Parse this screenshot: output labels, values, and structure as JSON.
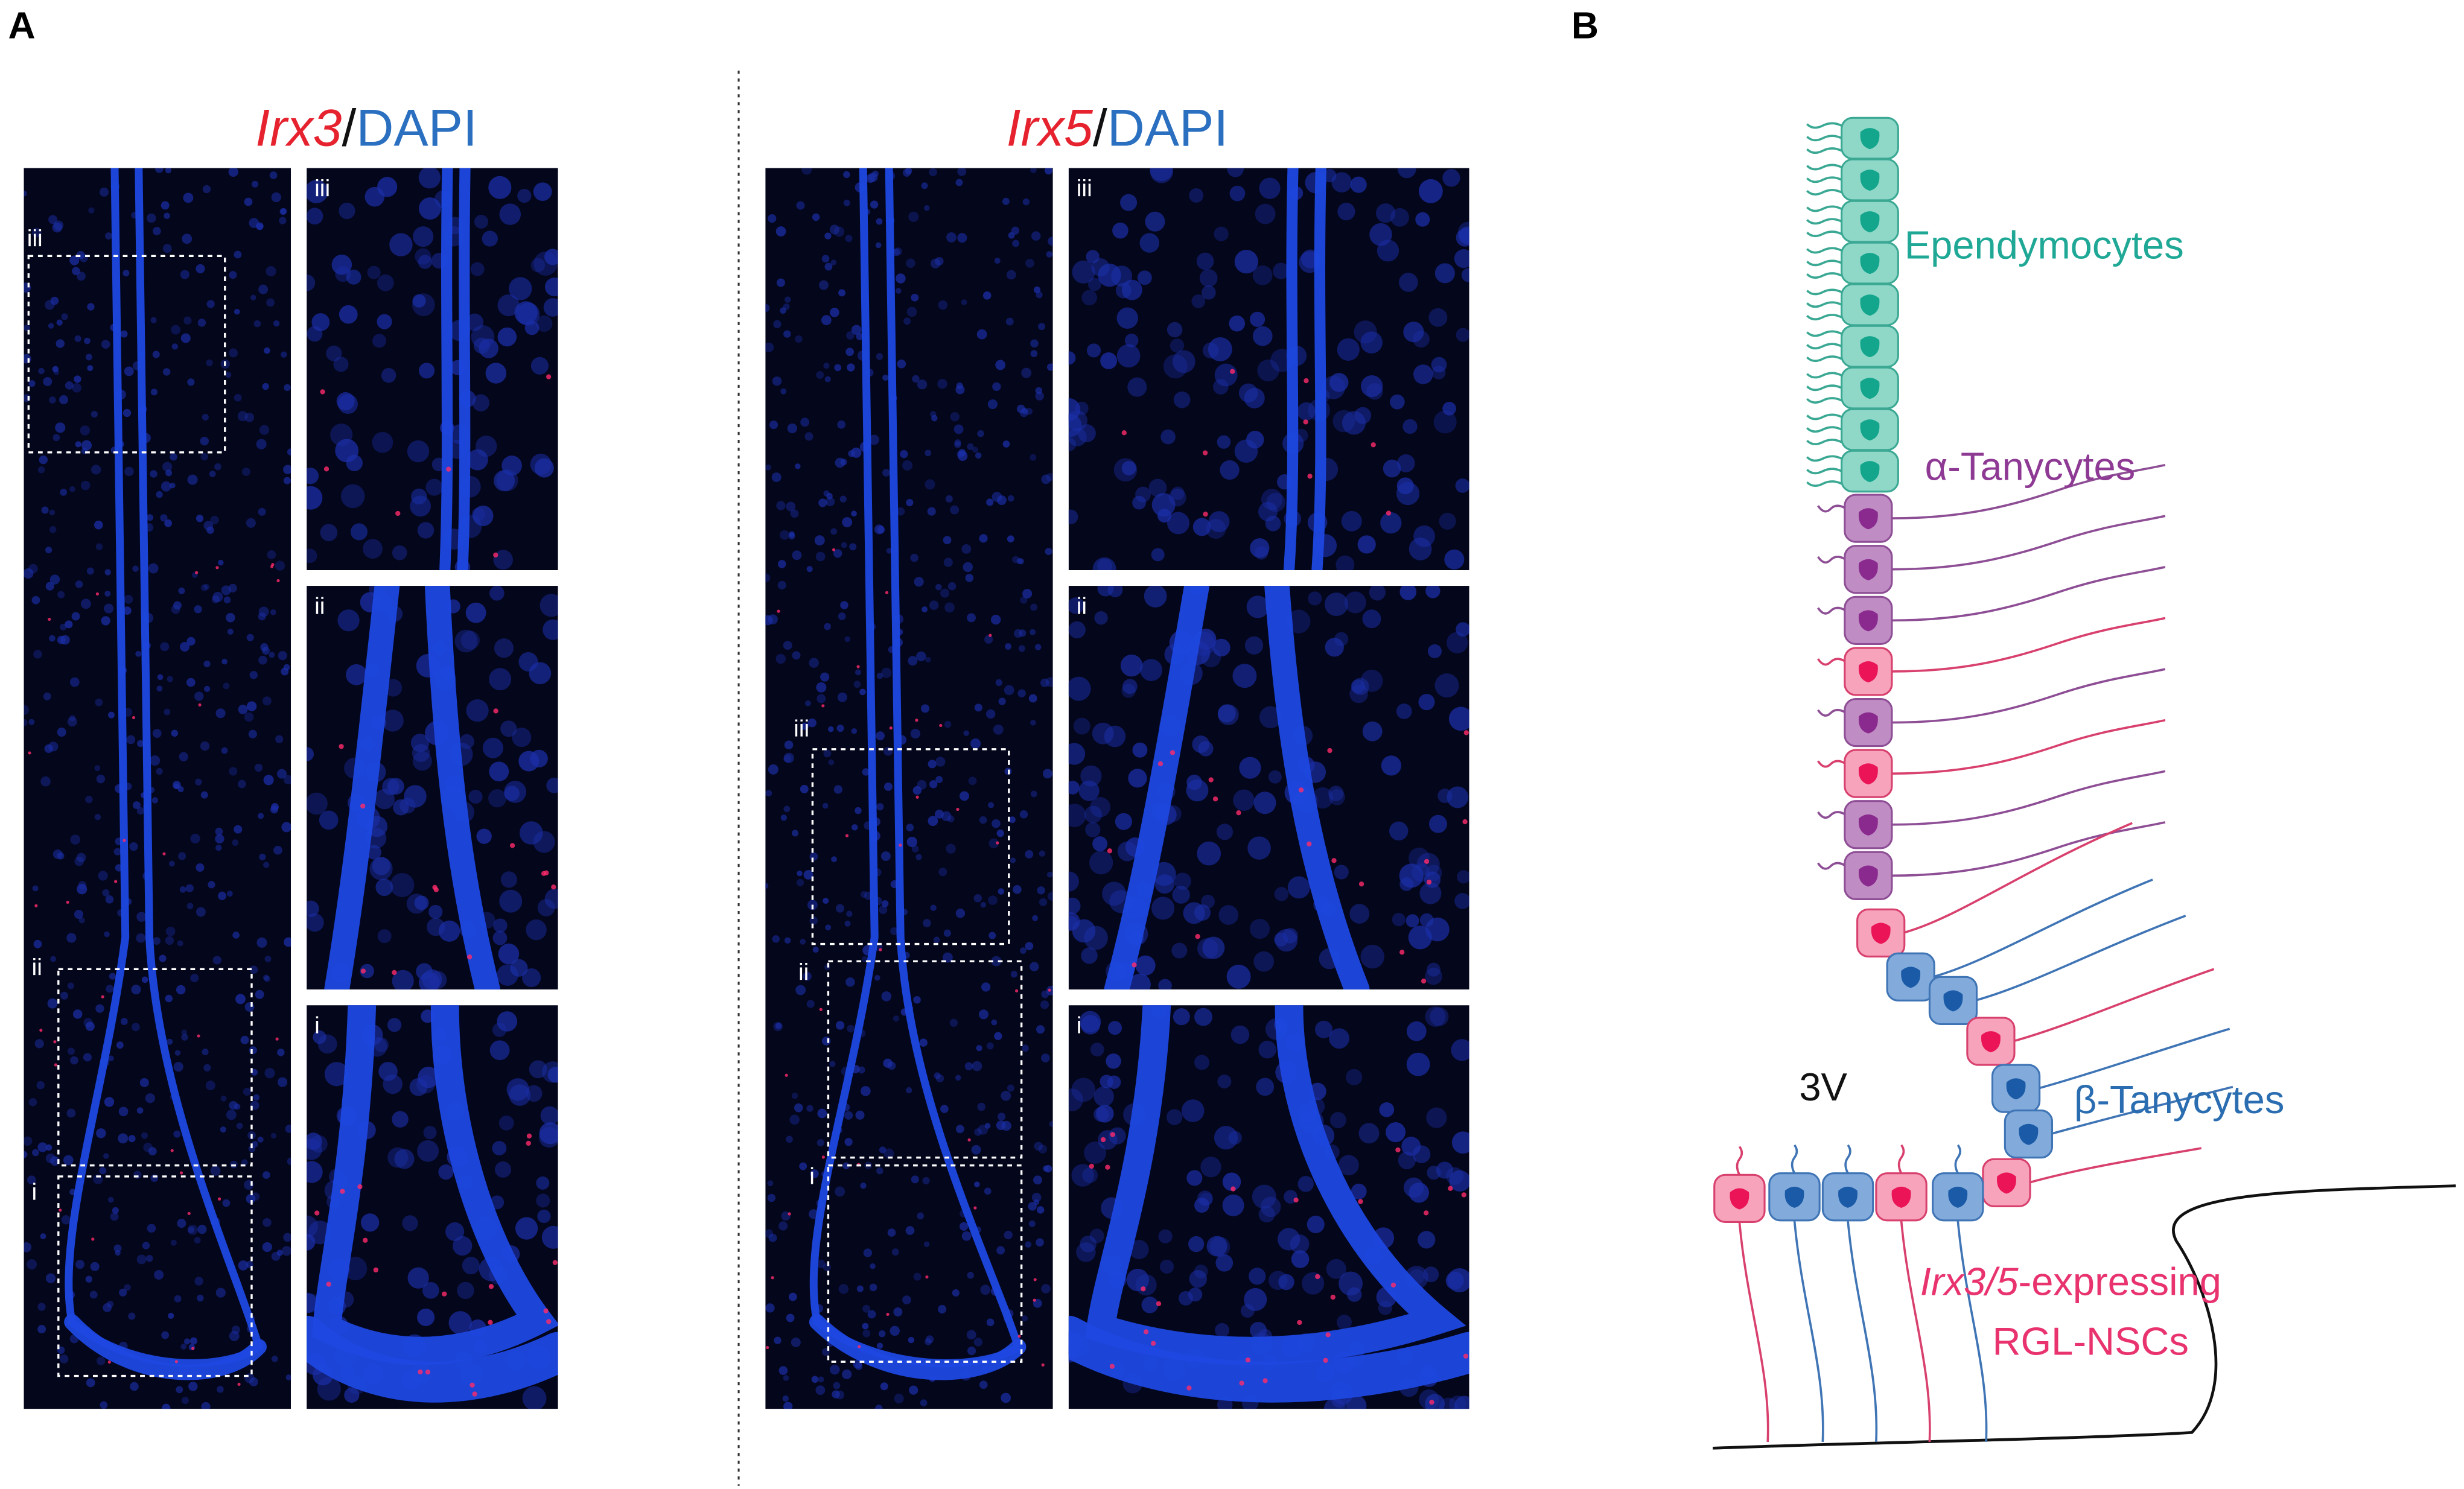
{
  "panel_a": {
    "label": "A",
    "left": {
      "title_gene": "Irx3",
      "title_slash": "/",
      "title_stain": "DAPI",
      "overview_labels": [
        "iii",
        "ii",
        "i"
      ],
      "inset_labels": [
        "iii",
        "ii",
        "i"
      ]
    },
    "right": {
      "title_gene": "Irx5",
      "title_slash": "/",
      "title_stain": "DAPI",
      "overview_labels": [
        "iii",
        "ii",
        "i"
      ],
      "inset_labels": [
        "iii",
        "ii",
        "i"
      ]
    }
  },
  "panel_b": {
    "label": "B",
    "ependymocytes": "Ependymocytes",
    "alpha_tanycytes": "α-Tanycytes",
    "beta_tanycytes": "β-Tanycytes",
    "ventricle": "3V",
    "rgl_gene": "Irx3/5",
    "rgl_suffix": "-expressing",
    "rgl_line2": "RGL-NSCs"
  }
}
